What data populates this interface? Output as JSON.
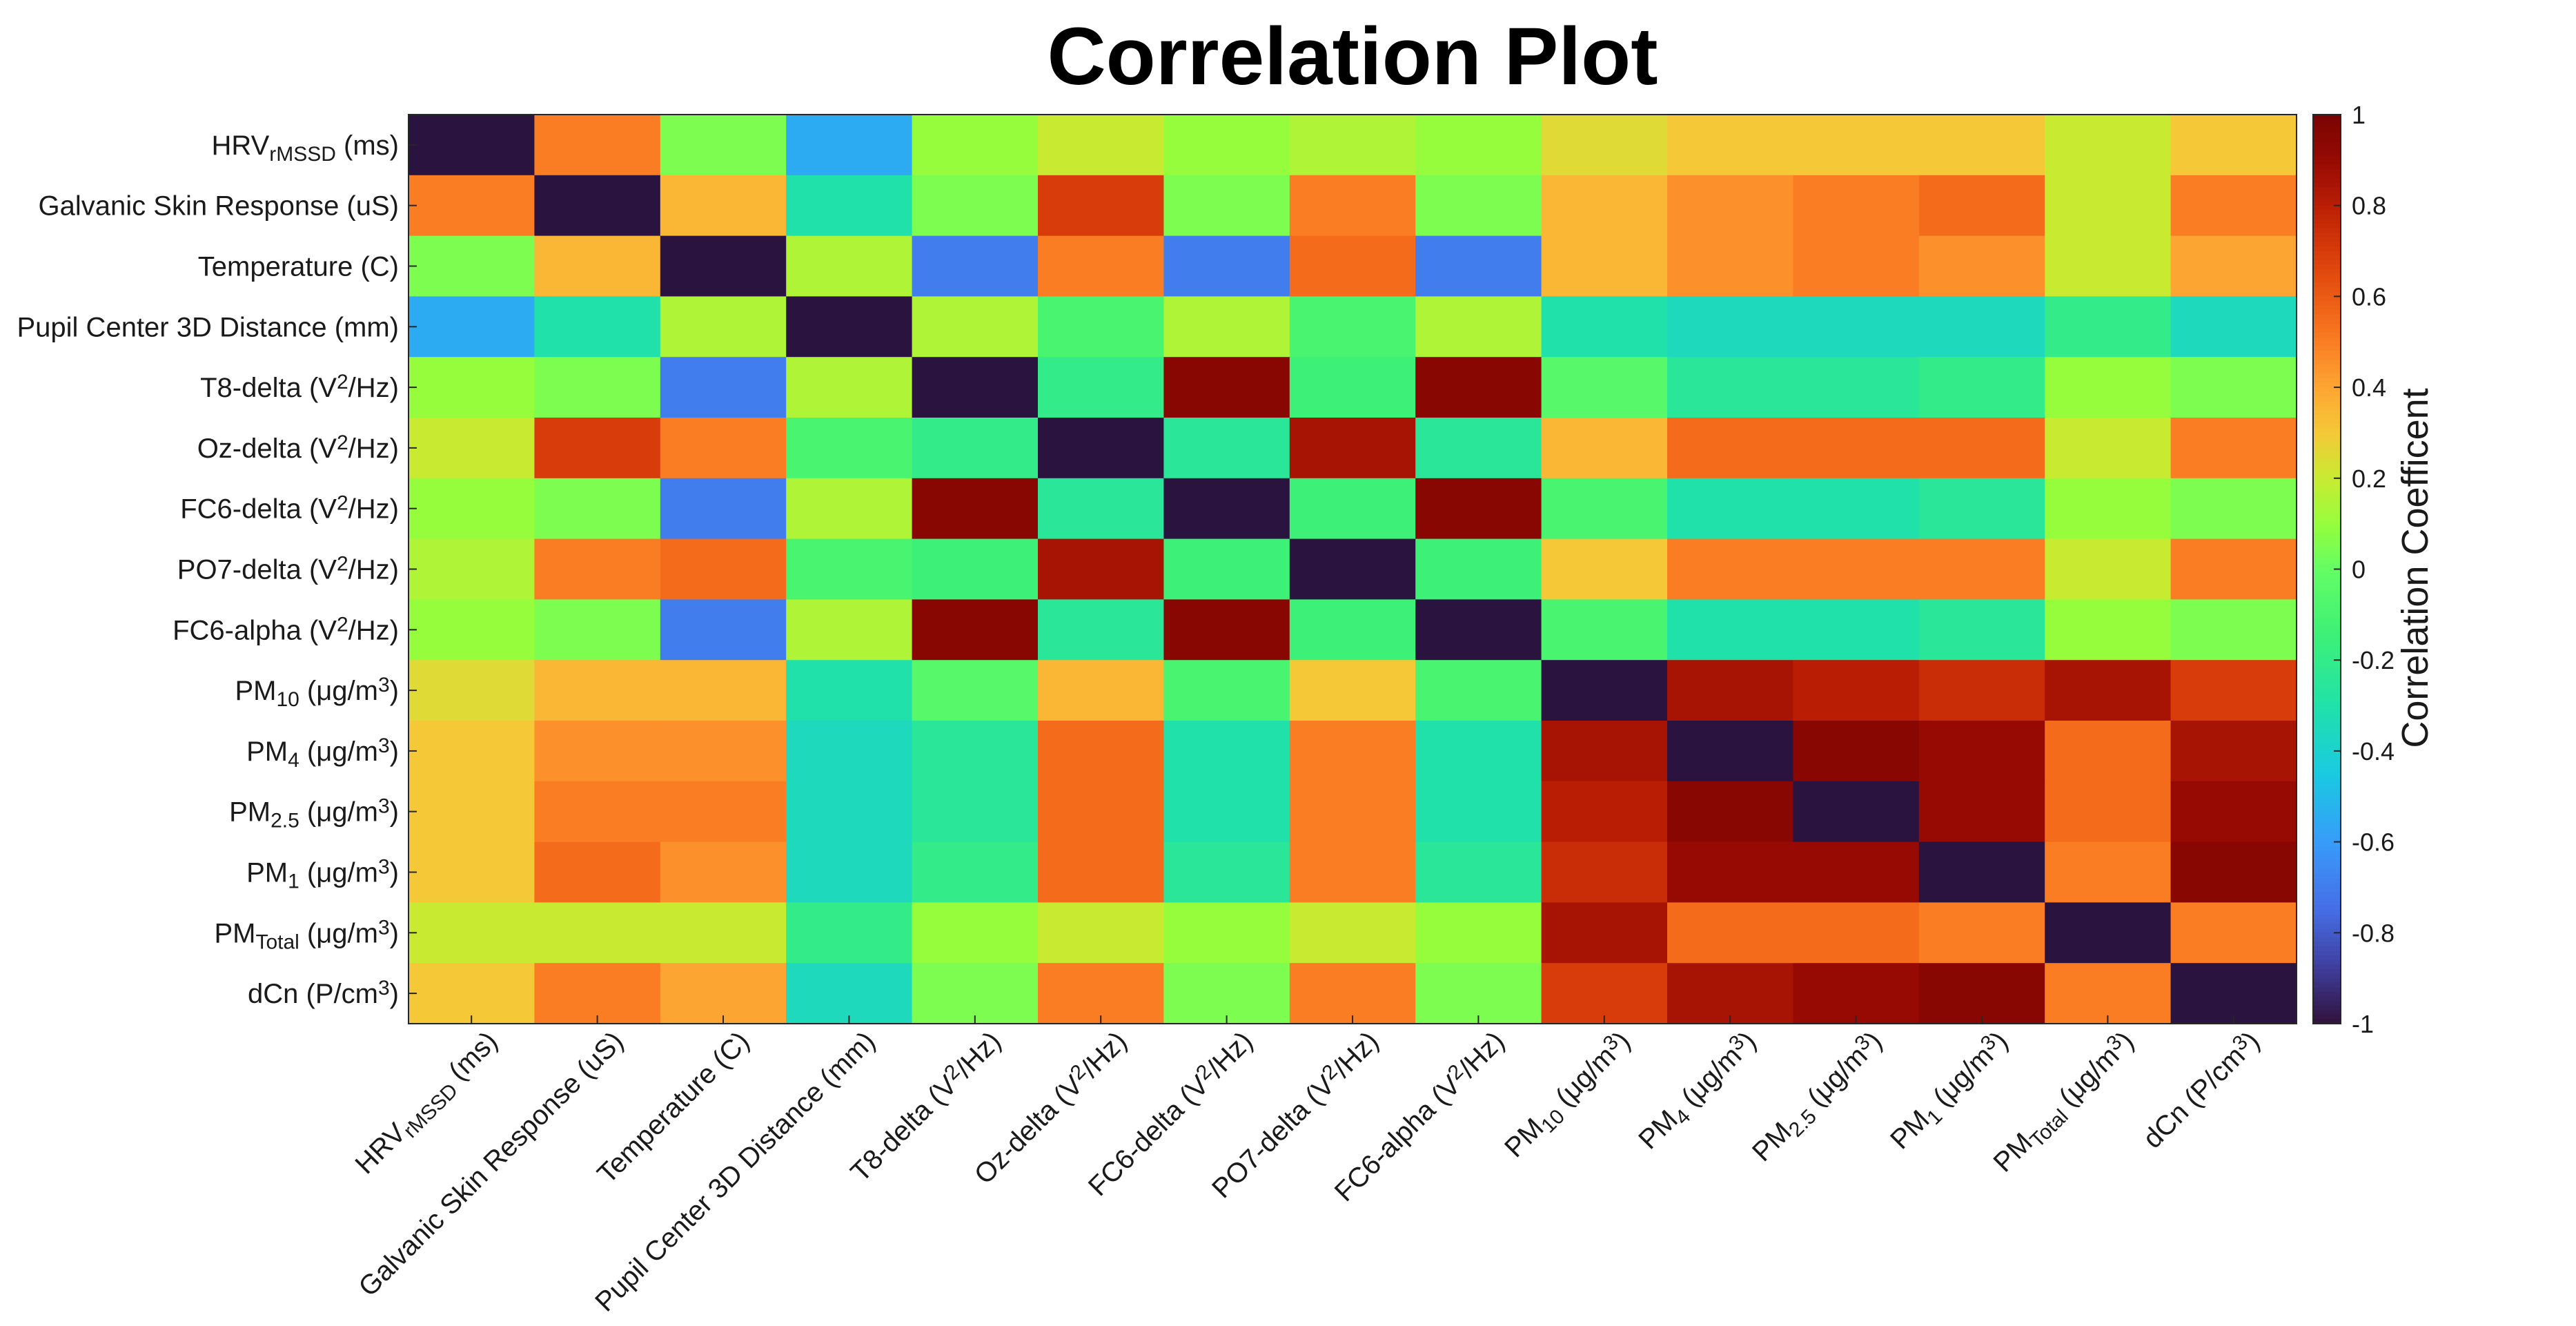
{
  "chart_data": {
    "type": "heatmap",
    "title": "Correlation Plot",
    "colorbar_label": "Correlation Coefficent",
    "colorbar_range": [
      -1,
      1
    ],
    "colorbar_ticks": [
      "1",
      "0.8",
      "0.6",
      "0.4",
      "0.2",
      "0",
      "-0.2",
      "-0.4",
      "-0.6",
      "-0.8",
      "-1"
    ],
    "colormap": "turbo",
    "variables": [
      {
        "base": "HRV",
        "sub": "rMSSD",
        "sup": "",
        "tail": " (ms)"
      },
      {
        "base": "Galvanic Skin Response (uS)",
        "sub": "",
        "sup": "",
        "tail": ""
      },
      {
        "base": "Temperature (C)",
        "sub": "",
        "sup": "",
        "tail": ""
      },
      {
        "base": "Pupil Center 3D Distance (mm)",
        "sub": "",
        "sup": "",
        "tail": ""
      },
      {
        "base": "T8-delta (V",
        "sub": "",
        "sup": "2",
        "tail": "/Hz)"
      },
      {
        "base": "Oz-delta (V",
        "sub": "",
        "sup": "2",
        "tail": "/Hz)"
      },
      {
        "base": "FC6-delta (V",
        "sub": "",
        "sup": "2",
        "tail": "/Hz)"
      },
      {
        "base": "PO7-delta (V",
        "sub": "",
        "sup": "2",
        "tail": "/Hz)"
      },
      {
        "base": "FC6-alpha (V",
        "sub": "",
        "sup": "2",
        "tail": "/Hz)"
      },
      {
        "base": "PM",
        "sub": "10",
        "sup": "",
        "tail": " (μg/m",
        "sup2": "3",
        "end": ")"
      },
      {
        "base": "PM",
        "sub": "4",
        "sup": "",
        "tail": " (μg/m",
        "sup2": "3",
        "end": ")"
      },
      {
        "base": "PM",
        "sub": "2.5",
        "sup": "",
        "tail": " (μg/m",
        "sup2": "3",
        "end": ")"
      },
      {
        "base": "PM",
        "sub": "1",
        "sup": "",
        "tail": " (μg/m",
        "sup2": "3",
        "end": ")"
      },
      {
        "base": "PM",
        "sub": "Total",
        "sup": "",
        "tail": " (μg/m",
        "sup2": "3",
        "end": ")"
      },
      {
        "base": "dCn (P/cm",
        "sub": "",
        "sup": "3",
        "tail": ")"
      }
    ],
    "values": [
      [
        -1.0,
        0.5,
        0.05,
        -0.55,
        0.1,
        0.2,
        0.1,
        0.15,
        0.1,
        0.25,
        0.3,
        0.3,
        0.3,
        0.2,
        0.3
      ],
      [
        0.5,
        -1.0,
        0.35,
        -0.3,
        0.05,
        0.7,
        0.05,
        0.5,
        0.05,
        0.35,
        0.45,
        0.5,
        0.55,
        0.2,
        0.5
      ],
      [
        0.05,
        0.35,
        -1.0,
        0.15,
        -0.7,
        0.5,
        -0.7,
        0.55,
        -0.7,
        0.35,
        0.45,
        0.5,
        0.45,
        0.2,
        0.4
      ],
      [
        -0.55,
        -0.3,
        0.15,
        -1.0,
        0.15,
        -0.1,
        0.15,
        -0.1,
        0.15,
        -0.3,
        -0.35,
        -0.35,
        -0.35,
        -0.2,
        -0.35
      ],
      [
        0.1,
        0.05,
        -0.7,
        0.15,
        -1.0,
        -0.2,
        0.95,
        -0.15,
        0.95,
        -0.05,
        -0.25,
        -0.25,
        -0.2,
        0.1,
        0.05
      ],
      [
        0.2,
        0.7,
        0.5,
        -0.1,
        -0.2,
        -1.0,
        -0.25,
        0.85,
        -0.25,
        0.35,
        0.55,
        0.55,
        0.55,
        0.2,
        0.5
      ],
      [
        0.1,
        0.05,
        -0.7,
        0.15,
        0.95,
        -0.25,
        -1.0,
        -0.15,
        0.95,
        -0.1,
        -0.3,
        -0.3,
        -0.25,
        0.1,
        0.05
      ],
      [
        0.15,
        0.5,
        0.55,
        -0.1,
        -0.15,
        0.85,
        -0.15,
        -1.0,
        -0.15,
        0.3,
        0.5,
        0.5,
        0.5,
        0.2,
        0.5
      ],
      [
        0.1,
        0.05,
        -0.7,
        0.15,
        0.95,
        -0.25,
        0.95,
        -0.15,
        -1.0,
        -0.1,
        -0.3,
        -0.3,
        -0.25,
        0.1,
        0.05
      ],
      [
        0.25,
        0.35,
        0.35,
        -0.3,
        -0.05,
        0.35,
        -0.1,
        0.3,
        -0.1,
        -1.0,
        0.85,
        0.8,
        0.75,
        0.85,
        0.7
      ],
      [
        0.3,
        0.45,
        0.45,
        -0.35,
        -0.25,
        0.55,
        -0.3,
        0.5,
        -0.3,
        0.85,
        -1.0,
        0.95,
        0.9,
        0.55,
        0.85
      ],
      [
        0.3,
        0.5,
        0.5,
        -0.35,
        -0.25,
        0.55,
        -0.3,
        0.5,
        -0.3,
        0.8,
        0.95,
        -1.0,
        0.9,
        0.55,
        0.9
      ],
      [
        0.3,
        0.55,
        0.45,
        -0.35,
        -0.2,
        0.55,
        -0.25,
        0.5,
        -0.25,
        0.75,
        0.9,
        0.9,
        -1.0,
        0.5,
        0.95
      ],
      [
        0.2,
        0.2,
        0.2,
        -0.2,
        0.1,
        0.2,
        0.1,
        0.2,
        0.1,
        0.85,
        0.55,
        0.55,
        0.5,
        -1.0,
        0.5
      ],
      [
        0.3,
        0.5,
        0.4,
        -0.35,
        0.05,
        0.5,
        0.05,
        0.5,
        0.05,
        0.7,
        0.85,
        0.9,
        0.95,
        0.5,
        -1.0
      ]
    ],
    "diagonal_color": "#2b1340"
  }
}
